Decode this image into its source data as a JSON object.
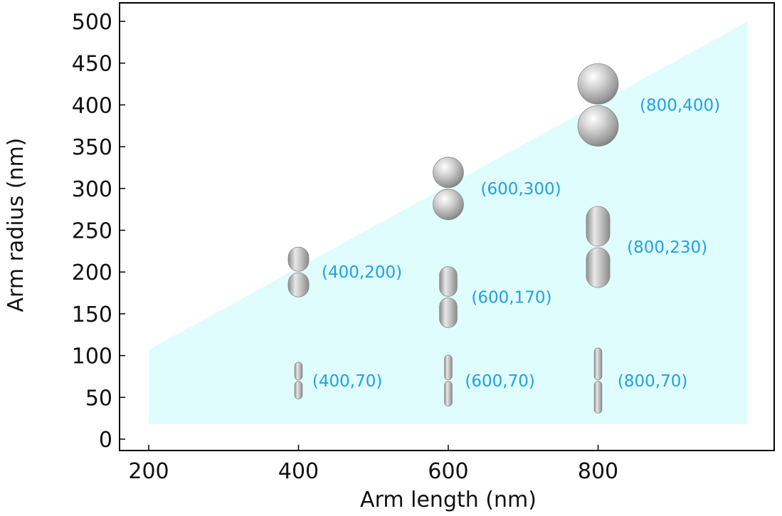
{
  "chart_data": {
    "type": "scatter",
    "title": "",
    "xlabel": "Arm length (nm)",
    "ylabel": "Arm radius (nm)",
    "xlim": [
      200,
      1000
    ],
    "ylim": [
      -12,
      520
    ],
    "x_ticks": [
      200,
      400,
      600,
      800
    ],
    "y_ticks": [
      0,
      50,
      100,
      150,
      200,
      250,
      300,
      350,
      400,
      450,
      500
    ],
    "grid": false,
    "legend": "none",
    "shaded_region": {
      "description_free": true,
      "polygon": [
        [
          200,
          18
        ],
        [
          200,
          107
        ],
        [
          1000,
          500
        ],
        [
          1000,
          18
        ]
      ],
      "color": "#e0fdfd"
    },
    "series": [
      {
        "points": [
          {
            "x": 400,
            "y": 70,
            "arm_length": 400,
            "arm_radius": 70,
            "label": "(400,70)"
          },
          {
            "x": 600,
            "y": 70,
            "arm_length": 600,
            "arm_radius": 70,
            "label": "(600,70)"
          },
          {
            "x": 800,
            "y": 70,
            "arm_length": 800,
            "arm_radius": 70,
            "label": "(800,70)"
          },
          {
            "x": 400,
            "y": 200,
            "arm_length": 400,
            "arm_radius": 200,
            "label": "(400,200)"
          },
          {
            "x": 600,
            "y": 170,
            "arm_length": 600,
            "arm_radius": 170,
            "label": "(600,170)"
          },
          {
            "x": 800,
            "y": 230,
            "arm_length": 800,
            "arm_radius": 230,
            "label": "(800,230)"
          },
          {
            "x": 600,
            "y": 300,
            "arm_length": 600,
            "arm_radius": 300,
            "label": "(600,300)"
          },
          {
            "x": 800,
            "y": 400,
            "arm_length": 800,
            "arm_radius": 400,
            "label": "(800,400)"
          }
        ]
      }
    ],
    "colors": {
      "shade": "#e0fdfd",
      "label": "#1fa2e0",
      "dimer": "#b4b4b4",
      "axis": "#000000"
    }
  }
}
